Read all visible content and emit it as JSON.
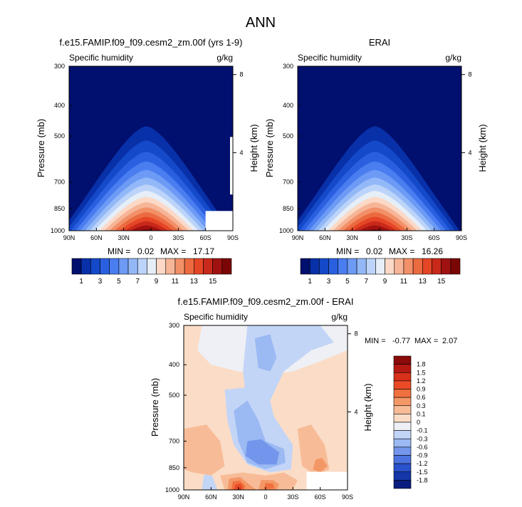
{
  "figure_title": "ANN",
  "chart_data": [
    {
      "type": "heatmap",
      "title": "f.e15.FAMIP.f09_f09.cesm2_zm.00f (yrs 1-9)",
      "subtitle_left": "Specific humidity",
      "subtitle_right": "g/kg",
      "ylabel": "Pressure (mb)",
      "ylabel_right": "Height (km)",
      "x_ticks": [
        "90N",
        "60N",
        "30N",
        "0",
        "30S",
        "60S",
        "90S"
      ],
      "x_tick_values": [
        90,
        60,
        30,
        0,
        -30,
        -60,
        -90
      ],
      "y_ticks": [
        "300",
        "400",
        "500",
        "700",
        "850",
        "1000"
      ],
      "y_tick_values": [
        300,
        400,
        500,
        700,
        850,
        1000
      ],
      "right_ticks": [
        "8",
        "4"
      ],
      "right_tick_values": [
        8,
        4
      ],
      "min_label": "MIN =",
      "min_value": "0.02",
      "max_label": "MAX =",
      "max_value": "17.17",
      "min_num": 0.02,
      "max_num": 17.17,
      "ylim": [
        300,
        1000
      ],
      "xlim": [
        90,
        -90
      ],
      "y_scale": "log",
      "colorbar_labels": [
        "1",
        "3",
        "5",
        "7",
        "9",
        "11",
        "13",
        "15"
      ],
      "colorbar_levels": [
        0,
        1,
        2,
        3,
        4,
        5,
        6,
        7,
        8,
        9,
        10,
        11,
        12,
        13,
        14,
        15,
        16
      ],
      "colorbar_colors": [
        "#010f6e",
        "#0830a8",
        "#1449c9",
        "#2a60e0",
        "#4a7df0",
        "#6c9af5",
        "#93b8f8",
        "#bcd4f9",
        "#e6eef8",
        "#fbd9c6",
        "#f7b597",
        "#f29068",
        "#ec6a40",
        "#e54626",
        "#c9291a",
        "#a01212",
        "#7a0606"
      ],
      "missing_region": "lower-right"
    },
    {
      "type": "heatmap",
      "title": "ERAI",
      "subtitle_left": "Specific humidity",
      "subtitle_right": "g/kg",
      "ylabel": "Pressure (mb)",
      "ylabel_right": "Height (km)",
      "x_ticks": [
        "90N",
        "60N",
        "30N",
        "0",
        "30S",
        "60S",
        "90S"
      ],
      "x_tick_values": [
        90,
        60,
        30,
        0,
        -30,
        -60,
        -90
      ],
      "y_ticks": [
        "300",
        "400",
        "500",
        "700",
        "850",
        "1000"
      ],
      "y_tick_values": [
        300,
        400,
        500,
        700,
        850,
        1000
      ],
      "right_ticks": [
        "8",
        "4"
      ],
      "right_tick_values": [
        8,
        4
      ],
      "min_label": "MIN =",
      "min_value": "0.02",
      "max_label": "MAX =",
      "max_value": "16.26",
      "min_num": 0.02,
      "max_num": 16.26,
      "ylim": [
        300,
        1000
      ],
      "xlim": [
        90,
        -90
      ],
      "y_scale": "log",
      "colorbar_labels": [
        "1",
        "3",
        "5",
        "7",
        "9",
        "11",
        "13",
        "15"
      ],
      "colorbar_levels": [
        0,
        1,
        2,
        3,
        4,
        5,
        6,
        7,
        8,
        9,
        10,
        11,
        12,
        13,
        14,
        15,
        16
      ],
      "colorbar_colors": [
        "#010f6e",
        "#0830a8",
        "#1449c9",
        "#2a60e0",
        "#4a7df0",
        "#6c9af5",
        "#93b8f8",
        "#bcd4f9",
        "#e6eef8",
        "#fbd9c6",
        "#f7b597",
        "#f29068",
        "#ec6a40",
        "#e54626",
        "#c9291a",
        "#a01212",
        "#7a0606"
      ]
    },
    {
      "type": "heatmap",
      "title": "f.e15.FAMIP.f09_f09.cesm2_zm.00f - ERAI",
      "subtitle_left": "Specific humidity",
      "subtitle_right": "g/kg",
      "ylabel": "Pressure (mb)",
      "ylabel_right": "Height (km)",
      "x_ticks": [
        "90N",
        "60N",
        "30N",
        "0",
        "30S",
        "60S",
        "90S"
      ],
      "x_tick_values": [
        90,
        60,
        30,
        0,
        -30,
        -60,
        -90
      ],
      "y_ticks": [
        "300",
        "400",
        "500",
        "700",
        "850",
        "1000"
      ],
      "y_tick_values": [
        300,
        400,
        500,
        700,
        850,
        1000
      ],
      "right_ticks": [
        "8",
        "4"
      ],
      "right_tick_values": [
        8,
        4
      ],
      "min_label": "MIN =",
      "min_value": "-0.77",
      "max_label": "MAX =",
      "max_value": "2.07",
      "min_num": -0.77,
      "max_num": 2.07,
      "ylim": [
        300,
        1000
      ],
      "xlim": [
        90,
        -90
      ],
      "y_scale": "log",
      "colorbar_labels": [
        "1.8",
        "1.5",
        "1.2",
        "0.9",
        "0.6",
        "0.3",
        "0.1",
        "0",
        "-0.1",
        "-0.3",
        "-0.6",
        "-0.9",
        "-1.2",
        "-1.5",
        "-1.8"
      ],
      "colorbar_colors": [
        "#8b0a0a",
        "#b51a12",
        "#d8301a",
        "#ea4b26",
        "#f1703f",
        "#f49766",
        "#f7bc97",
        "#fbdcc6",
        "#eef0f5",
        "#c3d5f7",
        "#9bb9f3",
        "#7396ec",
        "#4c73e0",
        "#2a52cc",
        "#1436a8",
        "#0a1d7e"
      ],
      "missing_region": "lower-right"
    }
  ]
}
